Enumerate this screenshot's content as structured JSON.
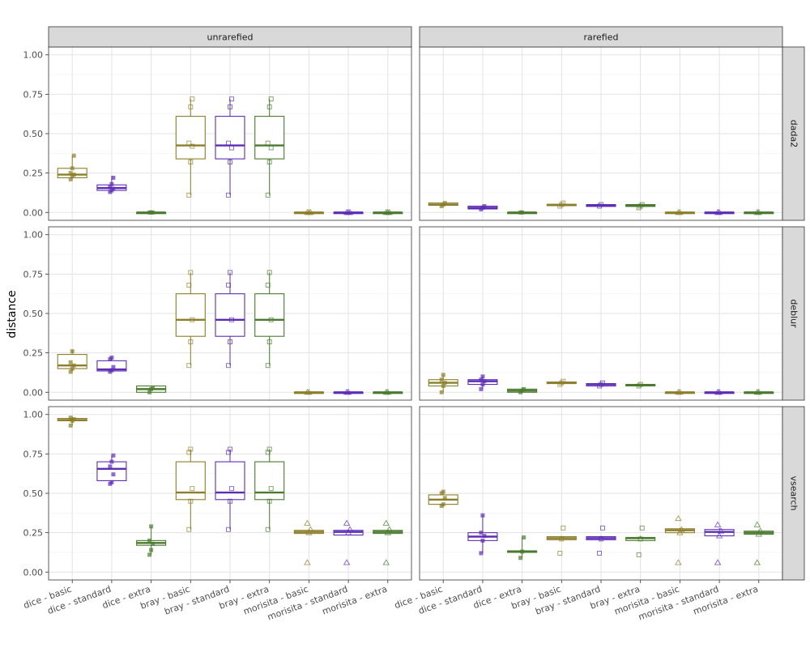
{
  "chart_data": {
    "type": "boxplot",
    "ylabel": "distance",
    "xlabel": "",
    "ylim": [
      0,
      1.0
    ],
    "y_ticks": [
      "0.00",
      "0.25",
      "0.50",
      "0.75",
      "1.00"
    ],
    "grid": true,
    "col_facets": [
      "unrarefied",
      "rarefied"
    ],
    "row_facets": [
      "dada2",
      "deblur",
      "vsearch"
    ],
    "categories": [
      "dice - basic",
      "dice - standard",
      "dice - extra",
      "bray - basic",
      "bray - standard",
      "bray - extra",
      "morisita - basic",
      "morisita - standard",
      "morisita - extra"
    ],
    "colors": [
      "#8C7E2A",
      "#5E2DB5",
      "#4A7A2E",
      "#8C7E2A",
      "#5E2DB5",
      "#4A7A2E",
      "#8C7E2A",
      "#5E2DB5",
      "#4A7A2E"
    ],
    "point_shapes": [
      "square-filled",
      "square-filled",
      "square-filled",
      "square-open",
      "square-open",
      "square-open",
      "triangle-open",
      "triangle-open",
      "triangle-open"
    ],
    "panels": [
      {
        "row": "dada2",
        "col": "unrarefied",
        "boxes": [
          {
            "q1": 0.22,
            "median": 0.24,
            "q3": 0.28,
            "lo": 0.21,
            "hi": 0.36,
            "points": [
              0.21,
              0.23,
              0.24,
              0.25,
              0.28,
              0.36
            ]
          },
          {
            "q1": 0.14,
            "median": 0.155,
            "q3": 0.175,
            "lo": 0.13,
            "hi": 0.23,
            "points": [
              0.13,
              0.14,
              0.15,
              0.16,
              0.18,
              0.22
            ]
          },
          {
            "q1": 0.0,
            "median": 0.0,
            "q3": 0.0,
            "lo": 0.0,
            "hi": 0.0,
            "points": [
              0.0,
              0.0,
              0.0
            ]
          },
          {
            "q1": 0.34,
            "median": 0.425,
            "q3": 0.61,
            "lo": 0.11,
            "hi": 0.72,
            "points": [
              0.11,
              0.32,
              0.42,
              0.44,
              0.67,
              0.72
            ]
          },
          {
            "q1": 0.34,
            "median": 0.425,
            "q3": 0.61,
            "lo": 0.11,
            "hi": 0.72,
            "points": [
              0.11,
              0.32,
              0.41,
              0.44,
              0.67,
              0.72
            ]
          },
          {
            "q1": 0.34,
            "median": 0.425,
            "q3": 0.61,
            "lo": 0.11,
            "hi": 0.72,
            "points": [
              0.11,
              0.32,
              0.41,
              0.44,
              0.67,
              0.72
            ]
          },
          {
            "q1": 0.0,
            "median": 0.0,
            "q3": 0.0,
            "lo": 0.0,
            "hi": 0.0,
            "points": [
              0.0,
              0.0,
              0.0
            ]
          },
          {
            "q1": 0.0,
            "median": 0.0,
            "q3": 0.0,
            "lo": 0.0,
            "hi": 0.0,
            "points": [
              0.0,
              0.0,
              0.0
            ]
          },
          {
            "q1": 0.0,
            "median": 0.0,
            "q3": 0.0,
            "lo": 0.0,
            "hi": 0.0,
            "points": [
              0.0,
              0.0,
              0.0
            ]
          }
        ]
      },
      {
        "row": "dada2",
        "col": "rarefied",
        "boxes": [
          {
            "q1": 0.045,
            "median": 0.05,
            "q3": 0.06,
            "lo": 0.04,
            "hi": 0.065,
            "points": [
              0.04,
              0.05,
              0.06
            ]
          },
          {
            "q1": 0.022,
            "median": 0.03,
            "q3": 0.04,
            "lo": 0.018,
            "hi": 0.045,
            "points": [
              0.02,
              0.03,
              0.04
            ]
          },
          {
            "q1": 0.0,
            "median": 0.0,
            "q3": 0.0,
            "lo": 0.0,
            "hi": 0.0,
            "points": [
              0.0,
              0.0
            ]
          },
          {
            "q1": 0.043,
            "median": 0.047,
            "q3": 0.052,
            "lo": 0.04,
            "hi": 0.06,
            "points": [
              0.04,
              0.05,
              0.06
            ]
          },
          {
            "q1": 0.038,
            "median": 0.045,
            "q3": 0.05,
            "lo": 0.035,
            "hi": 0.055,
            "points": [
              0.04,
              0.05
            ]
          },
          {
            "q1": 0.038,
            "median": 0.043,
            "q3": 0.05,
            "lo": 0.03,
            "hi": 0.055,
            "points": [
              0.03,
              0.04,
              0.05
            ]
          },
          {
            "q1": 0.0,
            "median": 0.0,
            "q3": 0.0,
            "lo": 0.0,
            "hi": 0.0,
            "points": [
              0.0,
              0.0
            ]
          },
          {
            "q1": 0.0,
            "median": 0.0,
            "q3": 0.0,
            "lo": 0.0,
            "hi": 0.0,
            "points": [
              0.0,
              0.0
            ]
          },
          {
            "q1": 0.0,
            "median": 0.0,
            "q3": 0.0,
            "lo": 0.0,
            "hi": 0.0,
            "points": [
              0.0,
              0.0
            ]
          }
        ]
      },
      {
        "row": "deblur",
        "col": "unrarefied",
        "boxes": [
          {
            "q1": 0.15,
            "median": 0.17,
            "q3": 0.24,
            "lo": 0.13,
            "hi": 0.27,
            "points": [
              0.13,
              0.15,
              0.17,
              0.19,
              0.26
            ]
          },
          {
            "q1": 0.135,
            "median": 0.145,
            "q3": 0.2,
            "lo": 0.13,
            "hi": 0.22,
            "points": [
              0.13,
              0.14,
              0.16,
              0.21,
              0.22
            ]
          },
          {
            "q1": 0.0,
            "median": 0.02,
            "q3": 0.04,
            "lo": 0.0,
            "hi": 0.04,
            "points": [
              0.0,
              0.02,
              0.03
            ]
          },
          {
            "q1": 0.355,
            "median": 0.46,
            "q3": 0.625,
            "lo": 0.17,
            "hi": 0.76,
            "points": [
              0.17,
              0.32,
              0.46,
              0.68,
              0.76
            ]
          },
          {
            "q1": 0.355,
            "median": 0.46,
            "q3": 0.625,
            "lo": 0.17,
            "hi": 0.76,
            "points": [
              0.17,
              0.32,
              0.46,
              0.68,
              0.76
            ]
          },
          {
            "q1": 0.355,
            "median": 0.46,
            "q3": 0.625,
            "lo": 0.17,
            "hi": 0.76,
            "points": [
              0.17,
              0.32,
              0.46,
              0.68,
              0.76
            ]
          },
          {
            "q1": 0.0,
            "median": 0.0,
            "q3": 0.0,
            "lo": 0.0,
            "hi": 0.0,
            "points": [
              0.0,
              0.0
            ]
          },
          {
            "q1": 0.0,
            "median": 0.0,
            "q3": 0.0,
            "lo": 0.0,
            "hi": 0.0,
            "points": [
              0.0,
              0.0
            ]
          },
          {
            "q1": 0.0,
            "median": 0.0,
            "q3": 0.0,
            "lo": 0.0,
            "hi": 0.0,
            "points": [
              0.0,
              0.0
            ]
          }
        ]
      },
      {
        "row": "deblur",
        "col": "rarefied",
        "boxes": [
          {
            "q1": 0.04,
            "median": 0.06,
            "q3": 0.08,
            "lo": 0.0,
            "hi": 0.11,
            "points": [
              0.0,
              0.04,
              0.06,
              0.08,
              0.11
            ]
          },
          {
            "q1": 0.05,
            "median": 0.07,
            "q3": 0.08,
            "lo": 0.02,
            "hi": 0.1,
            "points": [
              0.02,
              0.05,
              0.07,
              0.08,
              0.1
            ]
          },
          {
            "q1": 0.0,
            "median": 0.01,
            "q3": 0.02,
            "lo": 0.0,
            "hi": 0.03,
            "points": [
              0.0,
              0.01,
              0.02
            ]
          },
          {
            "q1": 0.055,
            "median": 0.06,
            "q3": 0.065,
            "lo": 0.05,
            "hi": 0.07,
            "points": [
              0.05,
              0.06,
              0.07
            ]
          },
          {
            "q1": 0.04,
            "median": 0.05,
            "q3": 0.055,
            "lo": 0.035,
            "hi": 0.06,
            "points": [
              0.04,
              0.05,
              0.06
            ]
          },
          {
            "q1": 0.04,
            "median": 0.045,
            "q3": 0.05,
            "lo": 0.035,
            "hi": 0.055,
            "points": [
              0.04,
              0.05
            ]
          },
          {
            "q1": 0.0,
            "median": 0.0,
            "q3": 0.0,
            "lo": 0.0,
            "hi": 0.0,
            "points": [
              0.0,
              0.0
            ]
          },
          {
            "q1": 0.0,
            "median": 0.0,
            "q3": 0.0,
            "lo": 0.0,
            "hi": 0.0,
            "points": [
              0.0,
              0.0
            ]
          },
          {
            "q1": 0.0,
            "median": 0.0,
            "q3": 0.0,
            "lo": 0.0,
            "hi": 0.0,
            "points": [
              0.0,
              0.0
            ]
          }
        ]
      },
      {
        "row": "vsearch",
        "col": "unrarefied",
        "boxes": [
          {
            "q1": 0.96,
            "median": 0.965,
            "q3": 0.975,
            "lo": 0.93,
            "hi": 0.985,
            "points": [
              0.93,
              0.96,
              0.97,
              0.98
            ]
          },
          {
            "q1": 0.58,
            "median": 0.655,
            "q3": 0.7,
            "lo": 0.56,
            "hi": 0.74,
            "points": [
              0.56,
              0.57,
              0.62,
              0.67,
              0.7,
              0.74
            ]
          },
          {
            "q1": 0.17,
            "median": 0.185,
            "q3": 0.2,
            "lo": 0.11,
            "hi": 0.29,
            "points": [
              0.11,
              0.14,
              0.18,
              0.2,
              0.29
            ]
          },
          {
            "q1": 0.46,
            "median": 0.505,
            "q3": 0.7,
            "lo": 0.27,
            "hi": 0.78,
            "points": [
              0.27,
              0.45,
              0.53,
              0.76,
              0.78
            ]
          },
          {
            "q1": 0.46,
            "median": 0.505,
            "q3": 0.7,
            "lo": 0.27,
            "hi": 0.78,
            "points": [
              0.27,
              0.45,
              0.53,
              0.76,
              0.78
            ]
          },
          {
            "q1": 0.46,
            "median": 0.505,
            "q3": 0.7,
            "lo": 0.27,
            "hi": 0.78,
            "points": [
              0.27,
              0.45,
              0.53,
              0.76,
              0.78
            ]
          },
          {
            "q1": 0.245,
            "median": 0.255,
            "q3": 0.265,
            "lo": 0.245,
            "hi": 0.27,
            "points": [
              0.06,
              0.25,
              0.27,
              0.31
            ]
          },
          {
            "q1": 0.235,
            "median": 0.255,
            "q3": 0.265,
            "lo": 0.235,
            "hi": 0.27,
            "points": [
              0.06,
              0.25,
              0.27,
              0.31
            ]
          },
          {
            "q1": 0.245,
            "median": 0.255,
            "q3": 0.265,
            "lo": 0.245,
            "hi": 0.27,
            "points": [
              0.06,
              0.25,
              0.27,
              0.31
            ]
          }
        ]
      },
      {
        "row": "vsearch",
        "col": "rarefied",
        "boxes": [
          {
            "q1": 0.43,
            "median": 0.46,
            "q3": 0.49,
            "lo": 0.42,
            "hi": 0.51,
            "points": [
              0.42,
              0.43,
              0.47,
              0.5,
              0.51
            ]
          },
          {
            "q1": 0.2,
            "median": 0.225,
            "q3": 0.25,
            "lo": 0.12,
            "hi": 0.36,
            "points": [
              0.12,
              0.2,
              0.23,
              0.25,
              0.36
            ]
          },
          {
            "q1": 0.125,
            "median": 0.13,
            "q3": 0.135,
            "lo": 0.09,
            "hi": 0.22,
            "points": [
              0.09,
              0.13,
              0.22
            ]
          },
          {
            "q1": 0.205,
            "median": 0.215,
            "q3": 0.225,
            "lo": 0.2,
            "hi": 0.23,
            "points": [
              0.12,
              0.21,
              0.28
            ]
          },
          {
            "q1": 0.205,
            "median": 0.215,
            "q3": 0.225,
            "lo": 0.2,
            "hi": 0.23,
            "points": [
              0.12,
              0.21,
              0.28
            ]
          },
          {
            "q1": 0.2,
            "median": 0.215,
            "q3": 0.22,
            "lo": 0.2,
            "hi": 0.23,
            "points": [
              0.11,
              0.21,
              0.28
            ]
          },
          {
            "q1": 0.25,
            "median": 0.265,
            "q3": 0.275,
            "lo": 0.25,
            "hi": 0.28,
            "points": [
              0.06,
              0.25,
              0.27,
              0.34
            ]
          },
          {
            "q1": 0.23,
            "median": 0.255,
            "q3": 0.27,
            "lo": 0.23,
            "hi": 0.28,
            "points": [
              0.06,
              0.23,
              0.26,
              0.3
            ]
          },
          {
            "q1": 0.24,
            "median": 0.25,
            "q3": 0.26,
            "lo": 0.24,
            "hi": 0.265,
            "points": [
              0.06,
              0.24,
              0.26,
              0.3
            ]
          }
        ]
      }
    ]
  }
}
